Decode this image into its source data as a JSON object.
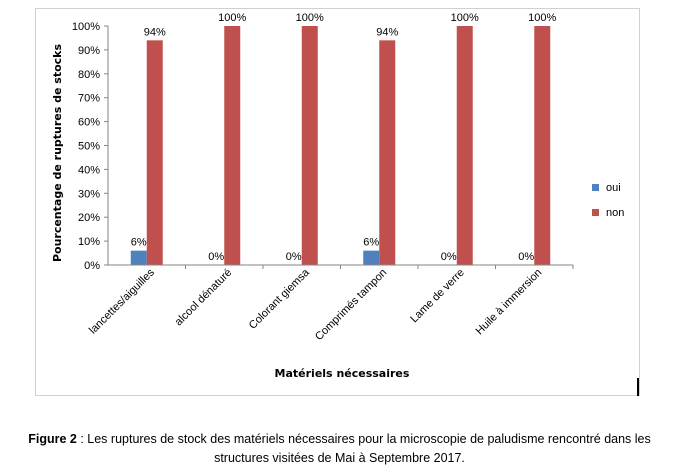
{
  "chart_data": {
    "type": "bar",
    "categories": [
      "lancettes/aiguilles",
      "alcool dénaturé",
      "Colorant giemsa",
      "Comprimés tampon",
      "Lame de verre",
      "Huile à immersion"
    ],
    "series": [
      {
        "name": "oui",
        "color": "#4f81bd",
        "values": [
          6,
          0,
          0,
          6,
          0,
          0
        ],
        "labels": [
          "6%",
          "0%",
          "0%",
          "6%",
          "0%",
          "0%"
        ]
      },
      {
        "name": "non",
        "color": "#c0504d",
        "values": [
          94,
          100,
          100,
          94,
          100,
          100
        ],
        "labels": [
          "94%",
          "100%",
          "100%",
          "94%",
          "100%",
          "100%"
        ]
      }
    ],
    "ylim": [
      0,
      100
    ],
    "yticks": [
      "0%",
      "10%",
      "20%",
      "30%",
      "40%",
      "50%",
      "60%",
      "70%",
      "80%",
      "90%",
      "100%"
    ],
    "xlabel": "Matériels  nécessaires",
    "ylabel": "Pourcentage de ruptures de stocks",
    "legend_position": "right",
    "grid": false
  },
  "caption": {
    "label": "Figure 2",
    "text_line1": " : Les ruptures de stock des matériels nécessaires pour la microscopie de paludisme rencontré dans les",
    "text_line2": "structures visitées de Mai à Septembre 2017."
  }
}
